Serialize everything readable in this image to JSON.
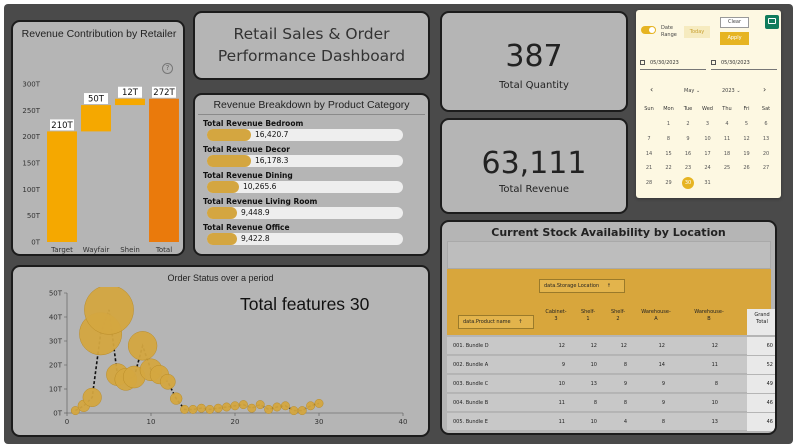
{
  "colors": {
    "canvas": "#4a4a4a",
    "card": "#b5b5b5",
    "accent_orange": "#f5a800",
    "accent_total": "#ea7a0c",
    "gold": "#d4a640",
    "table_header": "#d8a63c"
  },
  "retailer_chart": {
    "title": "Revenue Contribution by Retailer",
    "help_icon": "question-icon",
    "chart_data": {
      "type": "bar",
      "subtype": "waterfall",
      "categories": [
        "Target",
        "Wayfair",
        "Shein",
        "Total"
      ],
      "values": [
        210,
        50,
        12,
        272
      ],
      "data_labels": [
        "210T",
        "50T",
        "12T",
        "272T"
      ],
      "y_ticks": [
        "0T",
        "50T",
        "100T",
        "150T",
        "200T",
        "250T",
        "300T"
      ],
      "ylim": [
        0,
        300
      ],
      "grid": false
    }
  },
  "header": {
    "title_line1": "Retail Sales & Order",
    "title_line2": "Performance Dashboard"
  },
  "kpis": {
    "quantity": {
      "value": "387",
      "label": "Total Quantity"
    },
    "revenue": {
      "value": "63,111",
      "label": "Total Revenue"
    }
  },
  "category": {
    "title": "Revenue Breakdown by Product Category",
    "items": [
      {
        "label": "Total Revenue Bedroom",
        "value": "16,420.7",
        "fraction": 0.16
      },
      {
        "label": "Total Revenue Decor",
        "value": "16,178.3",
        "fraction": 0.16
      },
      {
        "label": "Total Revenue Dining",
        "value": "10,265.6",
        "fraction": 0.1
      },
      {
        "label": "Total Revenue Living Room",
        "value": "9,448.9",
        "fraction": 0.09
      },
      {
        "label": "Total Revenue Office",
        "value": "9,422.8",
        "fraction": 0.09
      }
    ]
  },
  "date_picker": {
    "toggle_label_1": "Date",
    "toggle_label_2": "Range",
    "today_label": "Today",
    "clear_label": "Clear",
    "apply_label": "Apply",
    "start_date": "05/30/2023",
    "end_date": "05/30/2023",
    "month": "May",
    "year": "2023",
    "weekdays": [
      "Sun",
      "Mon",
      "Tue",
      "Wed",
      "Thu",
      "Fri",
      "Sat"
    ],
    "weeks": [
      [
        "",
        "1",
        "2",
        "3",
        "4",
        "5",
        "6"
      ],
      [
        "7",
        "8",
        "9",
        "10",
        "11",
        "12",
        "13"
      ],
      [
        "14",
        "15",
        "16",
        "17",
        "18",
        "19",
        "20"
      ],
      [
        "21",
        "22",
        "23",
        "24",
        "25",
        "26",
        "27"
      ],
      [
        "28",
        "29",
        "30",
        "31",
        "",
        "",
        ""
      ]
    ],
    "selected_day": "30",
    "corner_icon": "comment-icon"
  },
  "stock": {
    "title": "Current Stock Availability by Location",
    "column_field": "data.Storage Location",
    "row_field": "data.Product name",
    "columns": [
      "Cabinet-\n3",
      "Shelf-\n1",
      "Shelf-\n2",
      "Warehouse-\nA",
      "Warehouse-\nB",
      "Grand\nTotal"
    ],
    "rows": [
      {
        "name": "001. Bundle D",
        "values": [
          "12",
          "12",
          "12",
          "12",
          "12",
          "60"
        ]
      },
      {
        "name": "002. Bundle A",
        "values": [
          "9",
          "10",
          "8",
          "14",
          "11",
          "52"
        ]
      },
      {
        "name": "003. Bundle C",
        "values": [
          "10",
          "13",
          "9",
          "9",
          "8",
          "49"
        ]
      },
      {
        "name": "004. Bundle B",
        "values": [
          "11",
          "8",
          "8",
          "9",
          "10",
          "46"
        ]
      },
      {
        "name": "005. Bundle E",
        "values": [
          "11",
          "10",
          "4",
          "8",
          "13",
          "46"
        ]
      }
    ]
  },
  "order_status": {
    "title": "Order Status over a period",
    "annotation": "Total features 30",
    "chart_data": {
      "type": "scatter",
      "subtype": "bubble-line",
      "x_ticks": [
        "0",
        "10",
        "20",
        "30",
        "40"
      ],
      "y_ticks": [
        "0T",
        "10T",
        "20T",
        "30T",
        "40T",
        "50T"
      ],
      "xlim": [
        0,
        40
      ],
      "ylim": [
        0,
        50
      ],
      "points": [
        {
          "x": 1,
          "y": 1,
          "r": 1
        },
        {
          "x": 2,
          "y": 3,
          "r": 2
        },
        {
          "x": 3,
          "y": 6.5,
          "r": 4
        },
        {
          "x": 4,
          "y": 33,
          "r": 11
        },
        {
          "x": 5,
          "y": 43,
          "r": 13
        },
        {
          "x": 6,
          "y": 16,
          "r": 5
        },
        {
          "x": 7,
          "y": 14,
          "r": 5
        },
        {
          "x": 8,
          "y": 15,
          "r": 5
        },
        {
          "x": 9,
          "y": 28,
          "r": 7
        },
        {
          "x": 10,
          "y": 18,
          "r": 5
        },
        {
          "x": 11,
          "y": 16,
          "r": 4
        },
        {
          "x": 12,
          "y": 13,
          "r": 3
        },
        {
          "x": 13,
          "y": 6,
          "r": 2
        },
        {
          "x": 14,
          "y": 1.5,
          "r": 1
        },
        {
          "x": 15,
          "y": 1.5,
          "r": 1
        },
        {
          "x": 16,
          "y": 2,
          "r": 1
        },
        {
          "x": 17,
          "y": 1.5,
          "r": 1
        },
        {
          "x": 18,
          "y": 2,
          "r": 1
        },
        {
          "x": 19,
          "y": 2.5,
          "r": 1
        },
        {
          "x": 20,
          "y": 3,
          "r": 1
        },
        {
          "x": 21,
          "y": 3.5,
          "r": 1
        },
        {
          "x": 22,
          "y": 2,
          "r": 1
        },
        {
          "x": 23,
          "y": 3.5,
          "r": 1
        },
        {
          "x": 24,
          "y": 1.5,
          "r": 1
        },
        {
          "x": 25,
          "y": 2.5,
          "r": 1
        },
        {
          "x": 26,
          "y": 3,
          "r": 1
        },
        {
          "x": 27,
          "y": 1,
          "r": 1
        },
        {
          "x": 28,
          "y": 1,
          "r": 1
        },
        {
          "x": 29,
          "y": 3,
          "r": 1
        },
        {
          "x": 30,
          "y": 4,
          "r": 1
        }
      ]
    }
  }
}
